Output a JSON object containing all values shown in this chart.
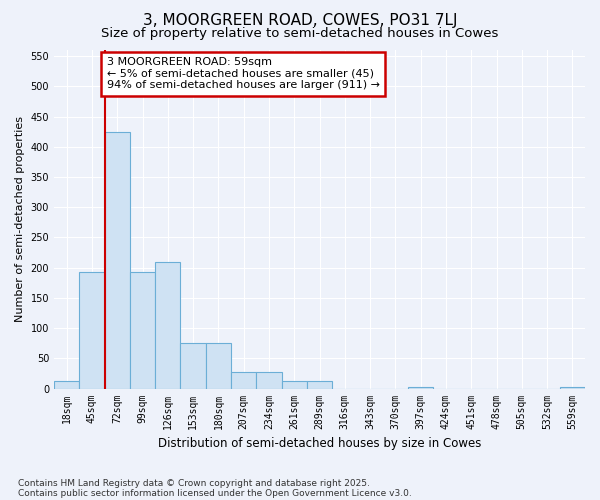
{
  "title": "3, MOORGREEN ROAD, COWES, PO31 7LJ",
  "subtitle": "Size of property relative to semi-detached houses in Cowes",
  "xlabel": "Distribution of semi-detached houses by size in Cowes",
  "ylabel": "Number of semi-detached properties",
  "annotation_title": "3 MOORGREEN ROAD: 59sqm",
  "annotation_line1": "← 5% of semi-detached houses are smaller (45)",
  "annotation_line2": "94% of semi-detached houses are larger (911) →",
  "footnote1": "Contains HM Land Registry data © Crown copyright and database right 2025.",
  "footnote2": "Contains public sector information licensed under the Open Government Licence v3.0.",
  "categories": [
    "18sqm",
    "45sqm",
    "72sqm",
    "99sqm",
    "126sqm",
    "153sqm",
    "180sqm",
    "207sqm",
    "234sqm",
    "261sqm",
    "289sqm",
    "316sqm",
    "343sqm",
    "370sqm",
    "397sqm",
    "424sqm",
    "451sqm",
    "478sqm",
    "505sqm",
    "532sqm",
    "559sqm"
  ],
  "bar_heights": [
    12,
    193,
    425,
    193,
    210,
    75,
    75,
    27,
    27,
    12,
    12,
    0,
    0,
    0,
    3,
    0,
    0,
    0,
    0,
    0,
    3
  ],
  "bar_color": "#cfe2f3",
  "bar_edge_color": "#6baed6",
  "red_line_x": 1.5,
  "ylim": [
    0,
    560
  ],
  "yticks": [
    0,
    50,
    100,
    150,
    200,
    250,
    300,
    350,
    400,
    450,
    500,
    550
  ],
  "background_color": "#eef2fa",
  "grid_color": "#ffffff",
  "annotation_box_facecolor": "#ffffff",
  "annotation_box_edgecolor": "#cc0000",
  "red_line_color": "#cc0000",
  "title_fontsize": 11,
  "subtitle_fontsize": 9.5,
  "xlabel_fontsize": 8.5,
  "ylabel_fontsize": 8,
  "tick_fontsize": 7,
  "annotation_fontsize": 8,
  "footnote_fontsize": 6.5
}
